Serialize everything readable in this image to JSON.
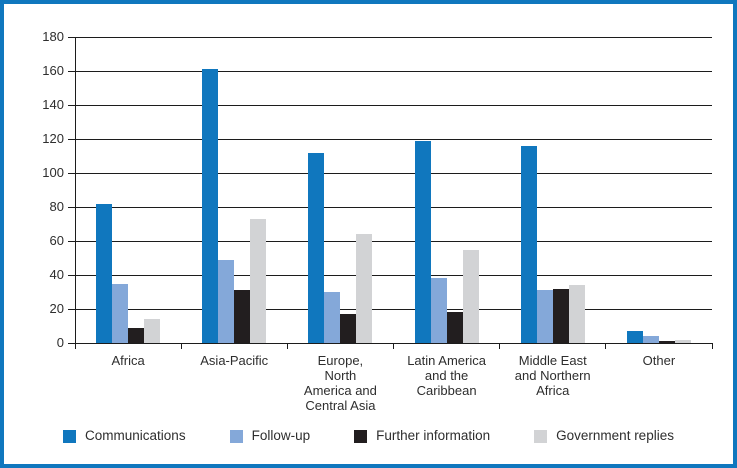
{
  "chart_data": {
    "type": "bar",
    "title": "",
    "xlabel": "",
    "ylabel": "",
    "categories": [
      "Africa",
      "Asia-Pacific",
      "Europe,\nNorth\nAmerica and\nCentral Asia",
      "Latin America\nand the\nCaribbean",
      "Middle East\nand Northern\nAfrica",
      "Other"
    ],
    "series": [
      {
        "name": "Communications",
        "color": "#1077BE",
        "values": [
          82,
          161,
          112,
          119,
          116,
          7
        ]
      },
      {
        "name": "Follow-up",
        "color": "#84A8D9",
        "values": [
          35,
          49,
          30,
          38,
          31,
          4
        ]
      },
      {
        "name": "Further information",
        "color": "#221E1F",
        "values": [
          9,
          31,
          17,
          18,
          32,
          1
        ]
      },
      {
        "name": "Government replies",
        "color": "#D2D3D5",
        "values": [
          14,
          73,
          64,
          55,
          34,
          2
        ]
      }
    ],
    "ylim": [
      0,
      180
    ],
    "yticks": [
      0,
      20,
      40,
      60,
      80,
      100,
      120,
      140,
      160,
      180
    ],
    "grid": true,
    "legend_position": "bottom",
    "frame_color": "#1077BE"
  }
}
